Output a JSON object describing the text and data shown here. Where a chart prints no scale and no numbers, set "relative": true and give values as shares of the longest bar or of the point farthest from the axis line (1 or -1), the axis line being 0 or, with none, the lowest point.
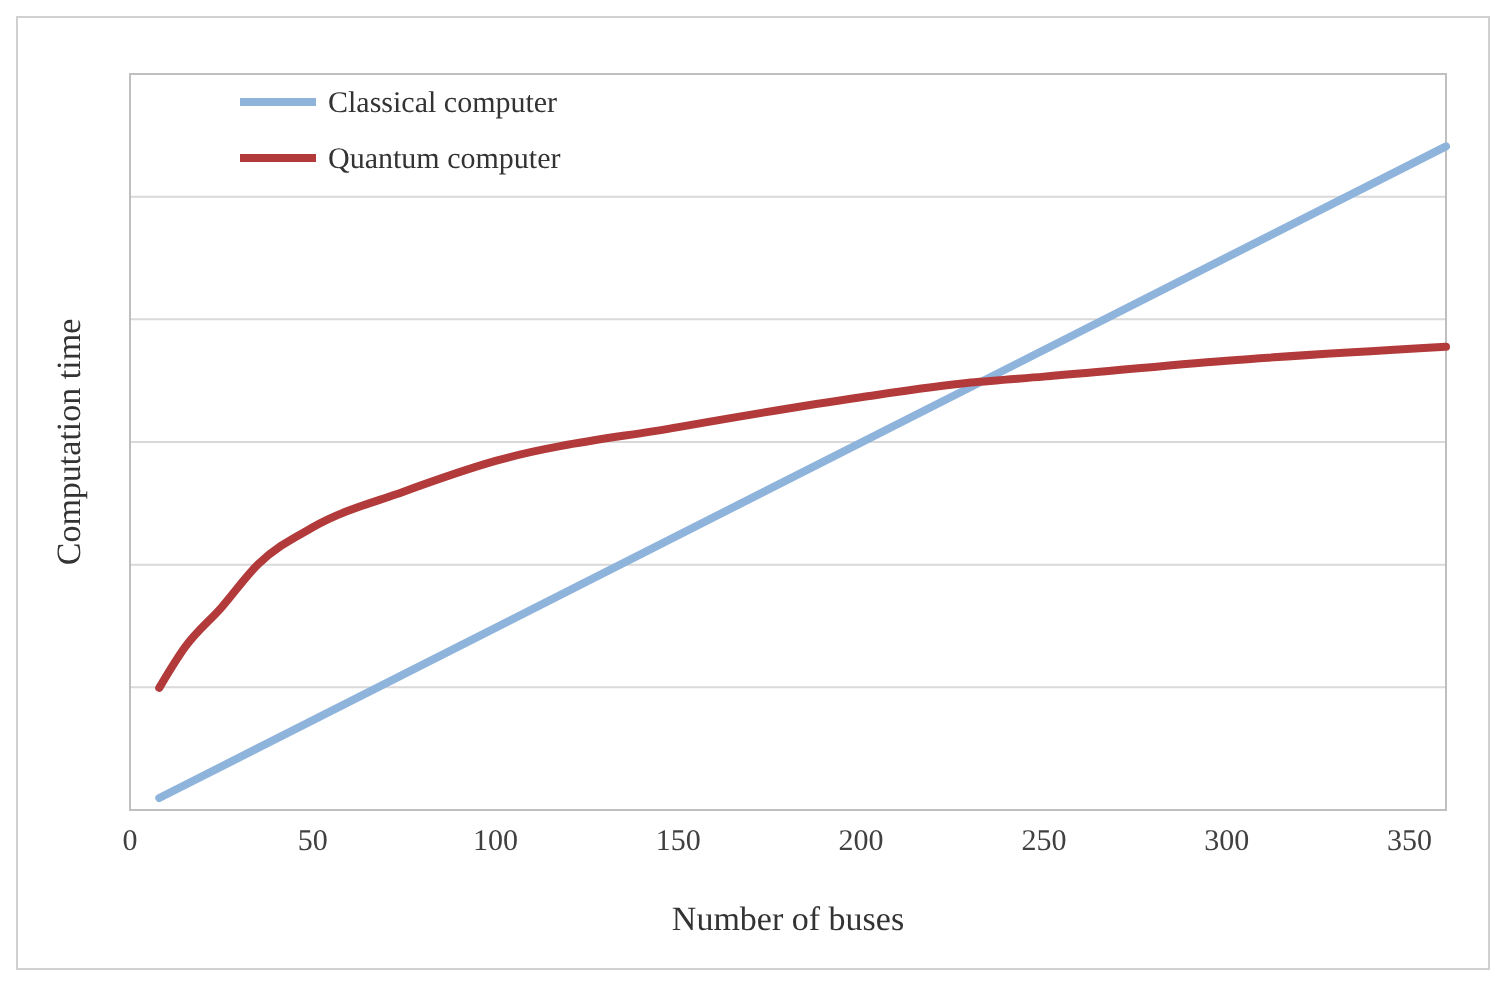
{
  "chart_data": {
    "type": "line",
    "xlabel": "Number of buses",
    "ylabel": "Computation time",
    "relative": true,
    "xlim": [
      0,
      360
    ],
    "xticks": [
      0,
      50,
      100,
      150,
      200,
      250,
      300,
      350
    ],
    "grid": "y",
    "legend": "top left",
    "marker": "none",
    "line_style": "solid",
    "series": [
      {
        "name": "Classical computer",
        "color": "#8fb4dc",
        "x": [
          8,
          360
        ],
        "values": [
          0.018,
          1
        ]
      },
      {
        "name": "Quantum computer",
        "color": "#b23a3a",
        "x": [
          8,
          15,
          25,
          35,
          50,
          75,
          100,
          150,
          200,
          230,
          250,
          300,
          360
        ],
        "values": [
          0.184,
          0.245,
          0.305,
          0.37,
          0.426,
          0.48,
          0.526,
          0.577,
          0.622,
          0.644,
          0.653,
          0.677,
          0.698
        ]
      }
    ]
  }
}
